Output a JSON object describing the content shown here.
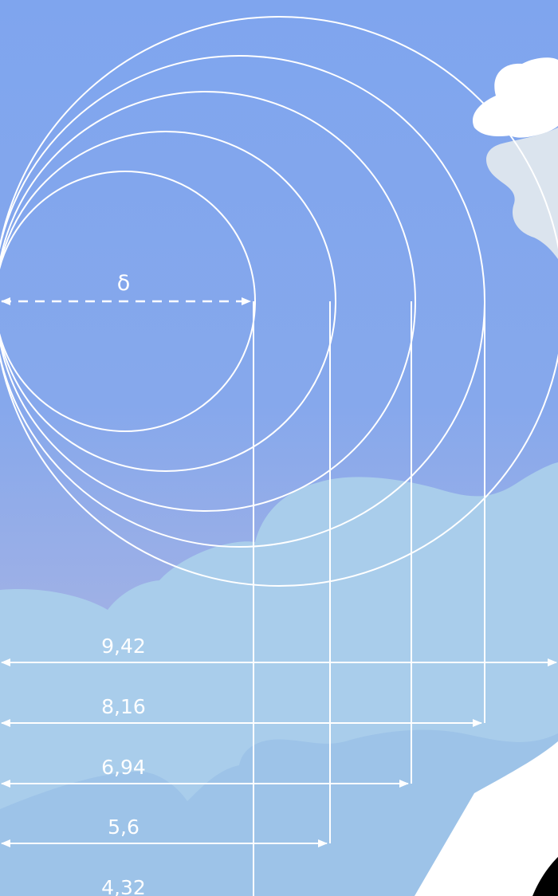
{
  "diagram": {
    "symbol": "δ",
    "dimensions": [
      {
        "label": "9,42"
      },
      {
        "label": "8,16"
      },
      {
        "label": "6,94"
      },
      {
        "label": "5,6"
      },
      {
        "label": "4,32"
      }
    ]
  },
  "colors": {
    "sky_top": "#7fa5ee",
    "sky_bottom": "#a6b3e4",
    "cloud_light": "#a9cdeb",
    "cloud_mid": "#9dc3e8",
    "cloud_white": "#ffffff",
    "cloud_grey": "#dbe4ee",
    "line": "#ffffff"
  }
}
